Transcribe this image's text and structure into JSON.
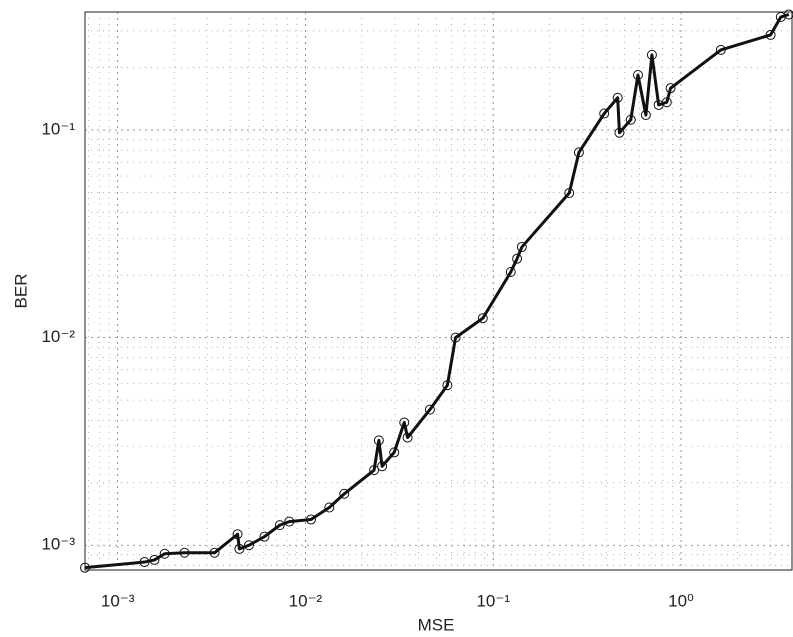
{
  "chart_data": {
    "type": "line",
    "x_label": "MSE",
    "y_label": "BER",
    "log_x": true,
    "log_y": true,
    "grid": true,
    "color": "#111111",
    "xlim": [
      0.00067,
      3.9
    ],
    "ylim": [
      0.00076,
      0.37
    ],
    "xticks": [
      {
        "value": 0.001,
        "label": "10⁻³"
      },
      {
        "value": 0.01,
        "label": "10⁻²"
      },
      {
        "value": 0.1,
        "label": "10⁻¹"
      },
      {
        "value": 1,
        "label": "10⁰"
      }
    ],
    "yticks": [
      {
        "value": 0.001,
        "label": "10⁻³"
      },
      {
        "value": 0.01,
        "label": "10⁻²"
      },
      {
        "value": 0.1,
        "label": "10⁻¹"
      }
    ],
    "xminorticks": [
      0.0007,
      0.0008,
      0.0009,
      0.002,
      0.003,
      0.004,
      0.005,
      0.006,
      0.007,
      0.008,
      0.009,
      0.02,
      0.03,
      0.04,
      0.05,
      0.06,
      0.07,
      0.08,
      0.09,
      0.2,
      0.3,
      0.4,
      0.5,
      0.6,
      0.7,
      0.8,
      0.9,
      2,
      3
    ],
    "yminorticks": [
      0.0008,
      0.0009,
      0.002,
      0.003,
      0.004,
      0.005,
      0.006,
      0.007,
      0.008,
      0.009,
      0.02,
      0.03,
      0.04,
      0.05,
      0.06,
      0.07,
      0.08,
      0.09,
      0.2,
      0.3
    ],
    "x": [
      0.00067,
      0.00139,
      0.00157,
      0.00178,
      0.00227,
      0.00328,
      0.00435,
      0.00445,
      0.005,
      0.00605,
      0.0073,
      0.0082,
      0.0107,
      0.0134,
      0.0161,
      0.0232,
      0.0246,
      0.0256,
      0.0297,
      0.0336,
      0.035,
      0.046,
      0.057,
      0.063,
      0.088,
      0.124,
      0.134,
      0.142,
      0.254,
      0.286,
      0.39,
      0.46,
      0.47,
      0.54,
      0.59,
      0.65,
      0.7,
      0.76,
      0.84,
      0.88,
      1.63,
      3.0,
      3.4,
      3.75
    ],
    "values": [
      0.00078,
      0.00083,
      0.00085,
      0.00091,
      0.00092,
      0.00092,
      0.00113,
      0.00096,
      0.001,
      0.0011,
      0.00125,
      0.0013,
      0.00133,
      0.00152,
      0.00177,
      0.0023,
      0.0032,
      0.0024,
      0.0028,
      0.0039,
      0.0033,
      0.0045,
      0.0059,
      0.01,
      0.0124,
      0.0207,
      0.024,
      0.0273,
      0.0497,
      0.078,
      0.12,
      0.143,
      0.097,
      0.112,
      0.184,
      0.118,
      0.23,
      0.132,
      0.136,
      0.159,
      0.243,
      0.287,
      0.35,
      0.36
    ]
  }
}
